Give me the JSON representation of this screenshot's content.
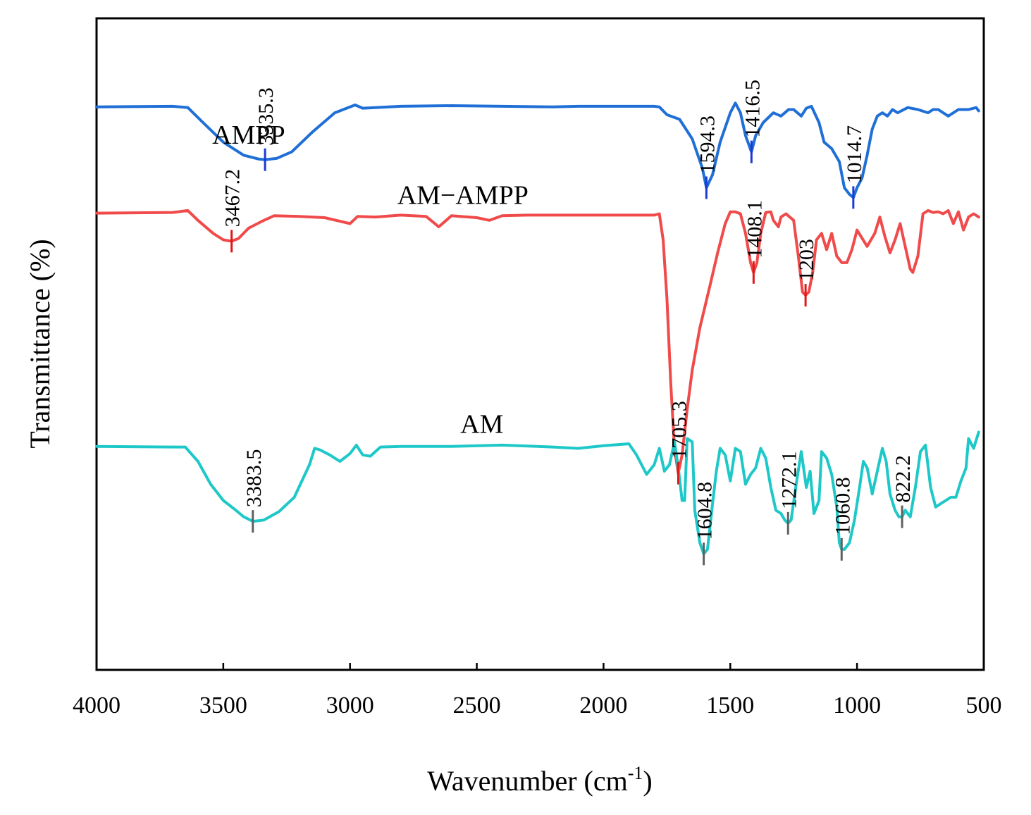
{
  "chart_data": {
    "type": "line",
    "title": "",
    "xlabel": "Wavenumber (cm",
    "xlabel_sup": "-1",
    "xlabel_suffix": ")",
    "ylabel": "Transmittance (%)",
    "xlim": [
      4000,
      500
    ],
    "x_reversed": true,
    "ylim": [
      0,
      100
    ],
    "y_ticks_shown": false,
    "x_ticks": [
      4000,
      3500,
      3000,
      2500,
      2000,
      1500,
      1000,
      500
    ],
    "x_tick_labels": [
      "4000",
      "3500",
      "3000",
      "2500",
      "2000",
      "1500",
      "1000",
      "500"
    ],
    "grid": false,
    "series": [
      {
        "name": "AMPP",
        "color": "#1f6fd6",
        "marker_color": "#1a3ad6",
        "label_x": 3400,
        "x": [
          4000,
          3700,
          3640,
          3580,
          3500,
          3420,
          3360,
          3335.3,
          3290,
          3230,
          3150,
          3060,
          2980,
          2950,
          2900,
          2800,
          2600,
          2400,
          2200,
          2100,
          1800,
          1780,
          1750,
          1700,
          1650,
          1610,
          1594.3,
          1570,
          1540,
          1500,
          1480,
          1460,
          1440,
          1416.5,
          1400,
          1370,
          1330,
          1300,
          1270,
          1250,
          1220,
          1200,
          1180,
          1150,
          1130,
          1100,
          1070,
          1050,
          1030,
          1014.7,
          1000,
          980,
          960,
          940,
          920,
          900,
          880,
          860,
          840,
          800,
          760,
          720,
          700,
          680,
          640,
          600,
          560,
          530,
          520
        ],
        "y": [
          86.4,
          86.5,
          86.3,
          84.0,
          81.0,
          79.0,
          78.4,
          78.3,
          78.5,
          79.5,
          82.5,
          85.5,
          86.7,
          86.2,
          86.3,
          86.5,
          86.6,
          86.5,
          86.4,
          86.5,
          86.5,
          86.4,
          85.2,
          84.5,
          81.5,
          77.0,
          74.0,
          76.0,
          81.0,
          85.5,
          87.0,
          85.5,
          82.0,
          79.5,
          82.0,
          84.0,
          85.5,
          85.0,
          86.0,
          86.0,
          85.0,
          86.2,
          86.5,
          84.0,
          81.0,
          80.0,
          78.0,
          74.0,
          73.0,
          72.5,
          74.0,
          75.5,
          79.0,
          83.0,
          85.0,
          85.5,
          85.0,
          86.0,
          85.5,
          86.3,
          86.0,
          85.5,
          86.0,
          86.0,
          85.0,
          86.0,
          86.0,
          86.3,
          85.8
        ],
        "peaks": [
          {
            "x": 3335.3,
            "label": "3335.3"
          },
          {
            "x": 1594.3,
            "label": "1594.3"
          },
          {
            "x": 1416.5,
            "label": "1416.5"
          },
          {
            "x": 1014.7,
            "label": "1014.7"
          }
        ]
      },
      {
        "name": "AM−AMPP",
        "color": "#f04a4a",
        "marker_color": "#e01818",
        "label_x": 2555,
        "x": [
          4000,
          3700,
          3640,
          3600,
          3540,
          3500,
          3467.2,
          3440,
          3400,
          3350,
          3300,
          3200,
          3100,
          3000,
          2970,
          2900,
          2800,
          2700,
          2650,
          2600,
          2500,
          2450,
          2400,
          2300,
          2200,
          2000,
          1800,
          1780,
          1765,
          1750,
          1735,
          1720,
          1705.3,
          1690,
          1670,
          1650,
          1620,
          1580,
          1550,
          1520,
          1500,
          1480,
          1460,
          1440,
          1420,
          1408.1,
          1395,
          1380,
          1360,
          1340,
          1330,
          1310,
          1300,
          1280,
          1250,
          1230,
          1215,
          1203,
          1190,
          1175,
          1160,
          1140,
          1120,
          1100,
          1080,
          1060,
          1040,
          1020,
          1000,
          960,
          930,
          910,
          890,
          870,
          850,
          830,
          810,
          790,
          780,
          760,
          740,
          720,
          700,
          680,
          660,
          640,
          620,
          600,
          580,
          560,
          540,
          520
        ],
        "y": [
          70.1,
          70.2,
          70.5,
          69.0,
          67.0,
          66.0,
          65.8,
          66.2,
          67.8,
          68.8,
          69.7,
          69.6,
          69.4,
          68.5,
          69.6,
          69.5,
          69.8,
          69.6,
          68.0,
          69.7,
          69.4,
          69.0,
          69.7,
          69.8,
          69.8,
          69.8,
          69.8,
          70.0,
          66.0,
          57.0,
          44.0,
          34.0,
          30.2,
          33.0,
          40.0,
          46.0,
          52.5,
          59.0,
          64.0,
          68.5,
          70.3,
          70.3,
          70.0,
          67.0,
          62.5,
          61.0,
          62.5,
          67.0,
          70.2,
          70.3,
          69.0,
          68.0,
          69.5,
          70.0,
          69.0,
          63.0,
          58.0,
          57.5,
          58.0,
          61.0,
          66.0,
          67.0,
          64.5,
          67.0,
          63.5,
          62.5,
          62.5,
          64.5,
          67.5,
          65.0,
          67.0,
          69.5,
          66.5,
          64.0,
          66.0,
          68.5,
          65.0,
          61.5,
          61.0,
          63.5,
          70.0,
          70.5,
          70.2,
          70.3,
          70.0,
          70.5,
          68.5,
          70.3,
          67.5,
          69.5,
          70.0,
          69.5
        ],
        "peaks": [
          {
            "x": 3467.2,
            "label": "3467.2"
          },
          {
            "x": 1705.3,
            "label": "1705.3"
          },
          {
            "x": 1408.1,
            "label": "1408.1"
          },
          {
            "x": 1203,
            "label": "1203"
          }
        ]
      },
      {
        "name": "AM",
        "color": "#1ec8c8",
        "marker_color": "#606060",
        "label_x": 2480,
        "x": [
          4000,
          3700,
          3650,
          3600,
          3550,
          3500,
          3450,
          3420,
          3383.5,
          3340,
          3280,
          3220,
          3160,
          3140,
          3120,
          3080,
          3040,
          3000,
          2975,
          2950,
          2920,
          2880,
          2800,
          2600,
          2400,
          2200,
          2100,
          2000,
          1900,
          1870,
          1830,
          1800,
          1780,
          1760,
          1740,
          1720,
          1705,
          1690,
          1680,
          1670,
          1650,
          1640,
          1620,
          1604.8,
          1590,
          1570,
          1555,
          1540,
          1520,
          1500,
          1480,
          1460,
          1440,
          1420,
          1400,
          1380,
          1360,
          1340,
          1320,
          1300,
          1285,
          1272.1,
          1260,
          1240,
          1220,
          1200,
          1185,
          1170,
          1150,
          1140,
          1120,
          1100,
          1080,
          1070,
          1060.8,
          1050,
          1030,
          1010,
          990,
          975,
          960,
          940,
          920,
          900,
          885,
          870,
          850,
          835,
          822.2,
          810,
          790,
          770,
          750,
          730,
          710,
          690,
          670,
          650,
          630,
          610,
          590,
          570,
          560,
          540,
          520
        ],
        "y": [
          34.3,
          34.2,
          34.2,
          32.0,
          28.5,
          26.0,
          24.5,
          23.5,
          22.8,
          23.0,
          24.3,
          26.5,
          31.5,
          34.0,
          33.8,
          33.0,
          32.0,
          33.2,
          34.5,
          33.0,
          32.8,
          34.2,
          34.3,
          34.3,
          34.5,
          34.2,
          34.0,
          34.4,
          34.7,
          33.0,
          30.0,
          31.5,
          34.0,
          30.5,
          31.5,
          35.0,
          31.0,
          26.0,
          26.0,
          35.5,
          35.0,
          24.5,
          19.5,
          17.8,
          18.5,
          25.5,
          30.5,
          34.0,
          33.0,
          29.0,
          34.0,
          33.5,
          28.5,
          30.0,
          31.0,
          34.0,
          32.5,
          28.0,
          24.5,
          24.0,
          23.0,
          22.5,
          23.0,
          28.5,
          33.5,
          28.0,
          30.5,
          24.0,
          26.0,
          33.5,
          32.5,
          30.0,
          25.0,
          19.5,
          18.5,
          18.5,
          19.5,
          23.0,
          28.0,
          32.0,
          31.0,
          27.0,
          30.5,
          34.0,
          32.0,
          27.0,
          24.5,
          23.5,
          23.5,
          24.5,
          23.5,
          28.0,
          33.5,
          34.5,
          28.0,
          25.0,
          25.5,
          26.0,
          26.5,
          26.5,
          29.0,
          31.0,
          35.5,
          34.0,
          36.5
        ],
        "peaks": [
          {
            "x": 3383.5,
            "label": "3383.5"
          },
          {
            "x": 1604.8,
            "label": "1604.8"
          },
          {
            "x": 1272.1,
            "label": "1272.1"
          },
          {
            "x": 1060.8,
            "label": "1060.8"
          },
          {
            "x": 822.2,
            "label": "822.2"
          }
        ]
      }
    ]
  }
}
